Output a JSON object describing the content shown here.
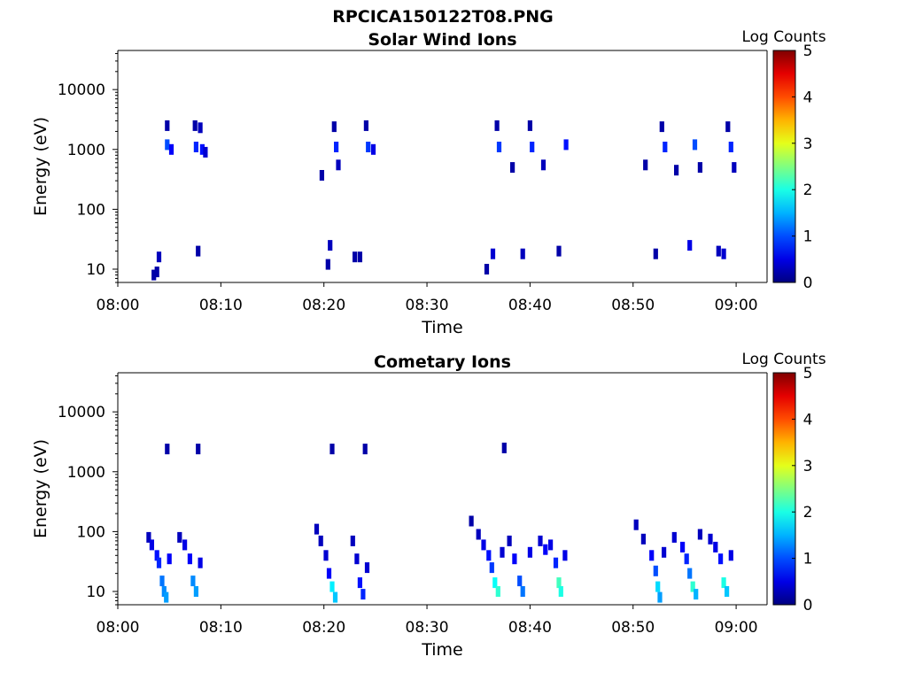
{
  "figure": {
    "title": "RPCICA150122T08.PNG"
  },
  "colors": {
    "jet_low": "#00007f",
    "jet_high": "#7f0000",
    "axis": "#000000"
  },
  "chart_data": [
    {
      "type": "heatmap",
      "title": "Solar Wind Ions",
      "xlabel": "Time",
      "ylabel": "Energy (eV)",
      "yscale": "log",
      "xlim": [
        "08:00",
        "09:03"
      ],
      "ylim": [
        6,
        45000
      ],
      "xticks": [
        "08:00",
        "08:10",
        "08:20",
        "08:30",
        "08:40",
        "08:50",
        "09:00"
      ],
      "yticks": [
        "10",
        "100",
        "1000",
        "10000"
      ],
      "colorbar": {
        "label": "Log Counts",
        "min": 0,
        "max": 5,
        "ticks": [
          "0",
          "1",
          "2",
          "3",
          "4",
          "5"
        ]
      },
      "cells": [
        {
          "t": "08:03.5",
          "e": 8,
          "c": 0.2
        },
        {
          "t": "08:03.8",
          "e": 9,
          "c": 0.2
        },
        {
          "t": "08:04.0",
          "e": 16,
          "c": 0.3
        },
        {
          "t": "08:04.8",
          "e": 2500,
          "c": 0.2
        },
        {
          "t": "08:04.8",
          "e": 1200,
          "c": 1.0
        },
        {
          "t": "08:05.2",
          "e": 1000,
          "c": 0.6
        },
        {
          "t": "08:07.5",
          "e": 2500,
          "c": 0.2
        },
        {
          "t": "08:07.6",
          "e": 1100,
          "c": 0.8
        },
        {
          "t": "08:07.8",
          "e": 20,
          "c": 0.2
        },
        {
          "t": "08:08.0",
          "e": 2300,
          "c": 0.3
        },
        {
          "t": "08:08.2",
          "e": 1000,
          "c": 0.7
        },
        {
          "t": "08:08.5",
          "e": 900,
          "c": 0.4
        },
        {
          "t": "08:19.8",
          "e": 370,
          "c": 0.2
        },
        {
          "t": "08:20.4",
          "e": 12,
          "c": 0.2
        },
        {
          "t": "08:20.6",
          "e": 25,
          "c": 0.3
        },
        {
          "t": "08:21.0",
          "e": 2400,
          "c": 0.2
        },
        {
          "t": "08:21.2",
          "e": 1100,
          "c": 0.8
        },
        {
          "t": "08:21.4",
          "e": 550,
          "c": 0.3
        },
        {
          "t": "08:23.0",
          "e": 16,
          "c": 0.2
        },
        {
          "t": "08:23.5",
          "e": 16,
          "c": 0.2
        },
        {
          "t": "08:24.1",
          "e": 2500,
          "c": 0.2
        },
        {
          "t": "08:24.3",
          "e": 1100,
          "c": 0.9
        },
        {
          "t": "08:24.8",
          "e": 1000,
          "c": 0.5
        },
        {
          "t": "08:35.8",
          "e": 10,
          "c": 0.2
        },
        {
          "t": "08:36.4",
          "e": 18,
          "c": 0.4
        },
        {
          "t": "08:36.8",
          "e": 2500,
          "c": 0.2
        },
        {
          "t": "08:37.0",
          "e": 1100,
          "c": 0.9
        },
        {
          "t": "08:38.3",
          "e": 500,
          "c": 0.2
        },
        {
          "t": "08:39.3",
          "e": 18,
          "c": 0.3
        },
        {
          "t": "08:40.0",
          "e": 2500,
          "c": 0.2
        },
        {
          "t": "08:40.2",
          "e": 1100,
          "c": 0.8
        },
        {
          "t": "08:41.3",
          "e": 550,
          "c": 0.3
        },
        {
          "t": "08:42.8",
          "e": 20,
          "c": 0.2
        },
        {
          "t": "08:43.5",
          "e": 1200,
          "c": 0.7
        },
        {
          "t": "08:51.2",
          "e": 550,
          "c": 0.2
        },
        {
          "t": "08:52.2",
          "e": 18,
          "c": 0.2
        },
        {
          "t": "08:52.8",
          "e": 2400,
          "c": 0.2
        },
        {
          "t": "08:53.1",
          "e": 1100,
          "c": 0.8
        },
        {
          "t": "08:54.2",
          "e": 450,
          "c": 0.2
        },
        {
          "t": "08:55.5",
          "e": 25,
          "c": 0.5
        },
        {
          "t": "08:56.0",
          "e": 1200,
          "c": 1.0
        },
        {
          "t": "08:56.5",
          "e": 500,
          "c": 0.2
        },
        {
          "t": "08:58.3",
          "e": 20,
          "c": 0.3
        },
        {
          "t": "08:58.8",
          "e": 18,
          "c": 0.4
        },
        {
          "t": "08:59.2",
          "e": 2400,
          "c": 0.2
        },
        {
          "t": "08:59.5",
          "e": 1100,
          "c": 0.8
        },
        {
          "t": "08:59.8",
          "e": 500,
          "c": 0.3
        }
      ]
    },
    {
      "type": "heatmap",
      "title": "Cometary Ions",
      "xlabel": "Time",
      "ylabel": "Energy (eV)",
      "yscale": "log",
      "xlim": [
        "08:00",
        "09:03"
      ],
      "ylim": [
        6,
        45000
      ],
      "xticks": [
        "08:00",
        "08:10",
        "08:20",
        "08:30",
        "08:40",
        "08:50",
        "09:00"
      ],
      "yticks": [
        "10",
        "100",
        "1000",
        "10000"
      ],
      "colorbar": {
        "label": "Log Counts",
        "min": 0,
        "max": 5,
        "ticks": [
          "0",
          "1",
          "2",
          "3",
          "4",
          "5"
        ]
      },
      "cells": [
        {
          "t": "08:04.8",
          "e": 2400,
          "c": 0.2
        },
        {
          "t": "08:07.8",
          "e": 2400,
          "c": 0.2
        },
        {
          "t": "08:20.8",
          "e": 2400,
          "c": 0.2
        },
        {
          "t": "08:24.0",
          "e": 2400,
          "c": 0.2
        },
        {
          "t": "08:37.5",
          "e": 2500,
          "c": 0.2
        },
        {
          "t": "08:03.0",
          "e": 80,
          "c": 0.3
        },
        {
          "t": "08:03.3",
          "e": 60,
          "c": 0.5
        },
        {
          "t": "08:03.8",
          "e": 40,
          "c": 0.7
        },
        {
          "t": "08:04.0",
          "e": 30,
          "c": 0.8
        },
        {
          "t": "08:04.3",
          "e": 15,
          "c": 1.2
        },
        {
          "t": "08:04.5",
          "e": 10,
          "c": 1.3
        },
        {
          "t": "08:04.7",
          "e": 8,
          "c": 1.4
        },
        {
          "t": "08:05.0",
          "e": 35,
          "c": 0.6
        },
        {
          "t": "08:06.0",
          "e": 80,
          "c": 0.3
        },
        {
          "t": "08:06.5",
          "e": 60,
          "c": 0.5
        },
        {
          "t": "08:07.0",
          "e": 35,
          "c": 0.6
        },
        {
          "t": "08:07.3",
          "e": 15,
          "c": 1.3
        },
        {
          "t": "08:07.6",
          "e": 10,
          "c": 1.4
        },
        {
          "t": "08:08.0",
          "e": 30,
          "c": 0.5
        },
        {
          "t": "08:19.3",
          "e": 110,
          "c": 0.3
        },
        {
          "t": "08:19.7",
          "e": 70,
          "c": 0.3
        },
        {
          "t": "08:20.2",
          "e": 40,
          "c": 0.4
        },
        {
          "t": "08:20.5",
          "e": 20,
          "c": 0.6
        },
        {
          "t": "08:20.8",
          "e": 12,
          "c": 1.8
        },
        {
          "t": "08:21.1",
          "e": 8,
          "c": 1.6
        },
        {
          "t": "08:22.8",
          "e": 70,
          "c": 0.3
        },
        {
          "t": "08:23.2",
          "e": 35,
          "c": 0.4
        },
        {
          "t": "08:23.5",
          "e": 14,
          "c": 0.7
        },
        {
          "t": "08:23.8",
          "e": 9,
          "c": 0.8
        },
        {
          "t": "08:24.2",
          "e": 25,
          "c": 0.4
        },
        {
          "t": "08:34.3",
          "e": 150,
          "c": 0.2
        },
        {
          "t": "08:35.0",
          "e": 90,
          "c": 0.3
        },
        {
          "t": "08:35.5",
          "e": 60,
          "c": 0.5
        },
        {
          "t": "08:36.0",
          "e": 40,
          "c": 0.7
        },
        {
          "t": "08:36.3",
          "e": 25,
          "c": 0.9
        },
        {
          "t": "08:36.6",
          "e": 14,
          "c": 1.9
        },
        {
          "t": "08:36.9",
          "e": 10,
          "c": 2.1
        },
        {
          "t": "08:37.3",
          "e": 45,
          "c": 0.4
        },
        {
          "t": "08:38.0",
          "e": 70,
          "c": 0.3
        },
        {
          "t": "08:38.5",
          "e": 35,
          "c": 0.6
        },
        {
          "t": "08:39.0",
          "e": 15,
          "c": 1.0
        },
        {
          "t": "08:39.3",
          "e": 10,
          "c": 1.2
        },
        {
          "t": "08:40.0",
          "e": 45,
          "c": 0.5
        },
        {
          "t": "08:41.0",
          "e": 70,
          "c": 0.4
        },
        {
          "t": "08:41.5",
          "e": 50,
          "c": 0.6
        },
        {
          "t": "08:42.0",
          "e": 60,
          "c": 0.5
        },
        {
          "t": "08:42.5",
          "e": 30,
          "c": 0.8
        },
        {
          "t": "08:42.8",
          "e": 14,
          "c": 2.2
        },
        {
          "t": "08:43.0",
          "e": 10,
          "c": 2.0
        },
        {
          "t": "08:43.4",
          "e": 40,
          "c": 0.5
        },
        {
          "t": "08:50.3",
          "e": 130,
          "c": 0.3
        },
        {
          "t": "08:51.0",
          "e": 75,
          "c": 0.3
        },
        {
          "t": "08:51.8",
          "e": 40,
          "c": 0.6
        },
        {
          "t": "08:52.2",
          "e": 22,
          "c": 1.0
        },
        {
          "t": "08:52.4",
          "e": 12,
          "c": 1.7
        },
        {
          "t": "08:52.6",
          "e": 8,
          "c": 1.4
        },
        {
          "t": "08:53.0",
          "e": 45,
          "c": 0.4
        },
        {
          "t": "08:54.0",
          "e": 80,
          "c": 0.4
        },
        {
          "t": "08:54.8",
          "e": 55,
          "c": 0.6
        },
        {
          "t": "08:55.2",
          "e": 35,
          "c": 0.8
        },
        {
          "t": "08:55.5",
          "e": 20,
          "c": 1.2
        },
        {
          "t": "08:55.8",
          "e": 12,
          "c": 2.1
        },
        {
          "t": "08:56.1",
          "e": 9,
          "c": 1.5
        },
        {
          "t": "08:56.5",
          "e": 90,
          "c": 0.3
        },
        {
          "t": "08:57.5",
          "e": 75,
          "c": 0.4
        },
        {
          "t": "08:58.0",
          "e": 55,
          "c": 0.5
        },
        {
          "t": "08:58.5",
          "e": 35,
          "c": 0.7
        },
        {
          "t": "08:58.8",
          "e": 14,
          "c": 2.0
        },
        {
          "t": "08:59.1",
          "e": 10,
          "c": 1.6
        },
        {
          "t": "08:59.5",
          "e": 40,
          "c": 0.5
        }
      ]
    }
  ]
}
